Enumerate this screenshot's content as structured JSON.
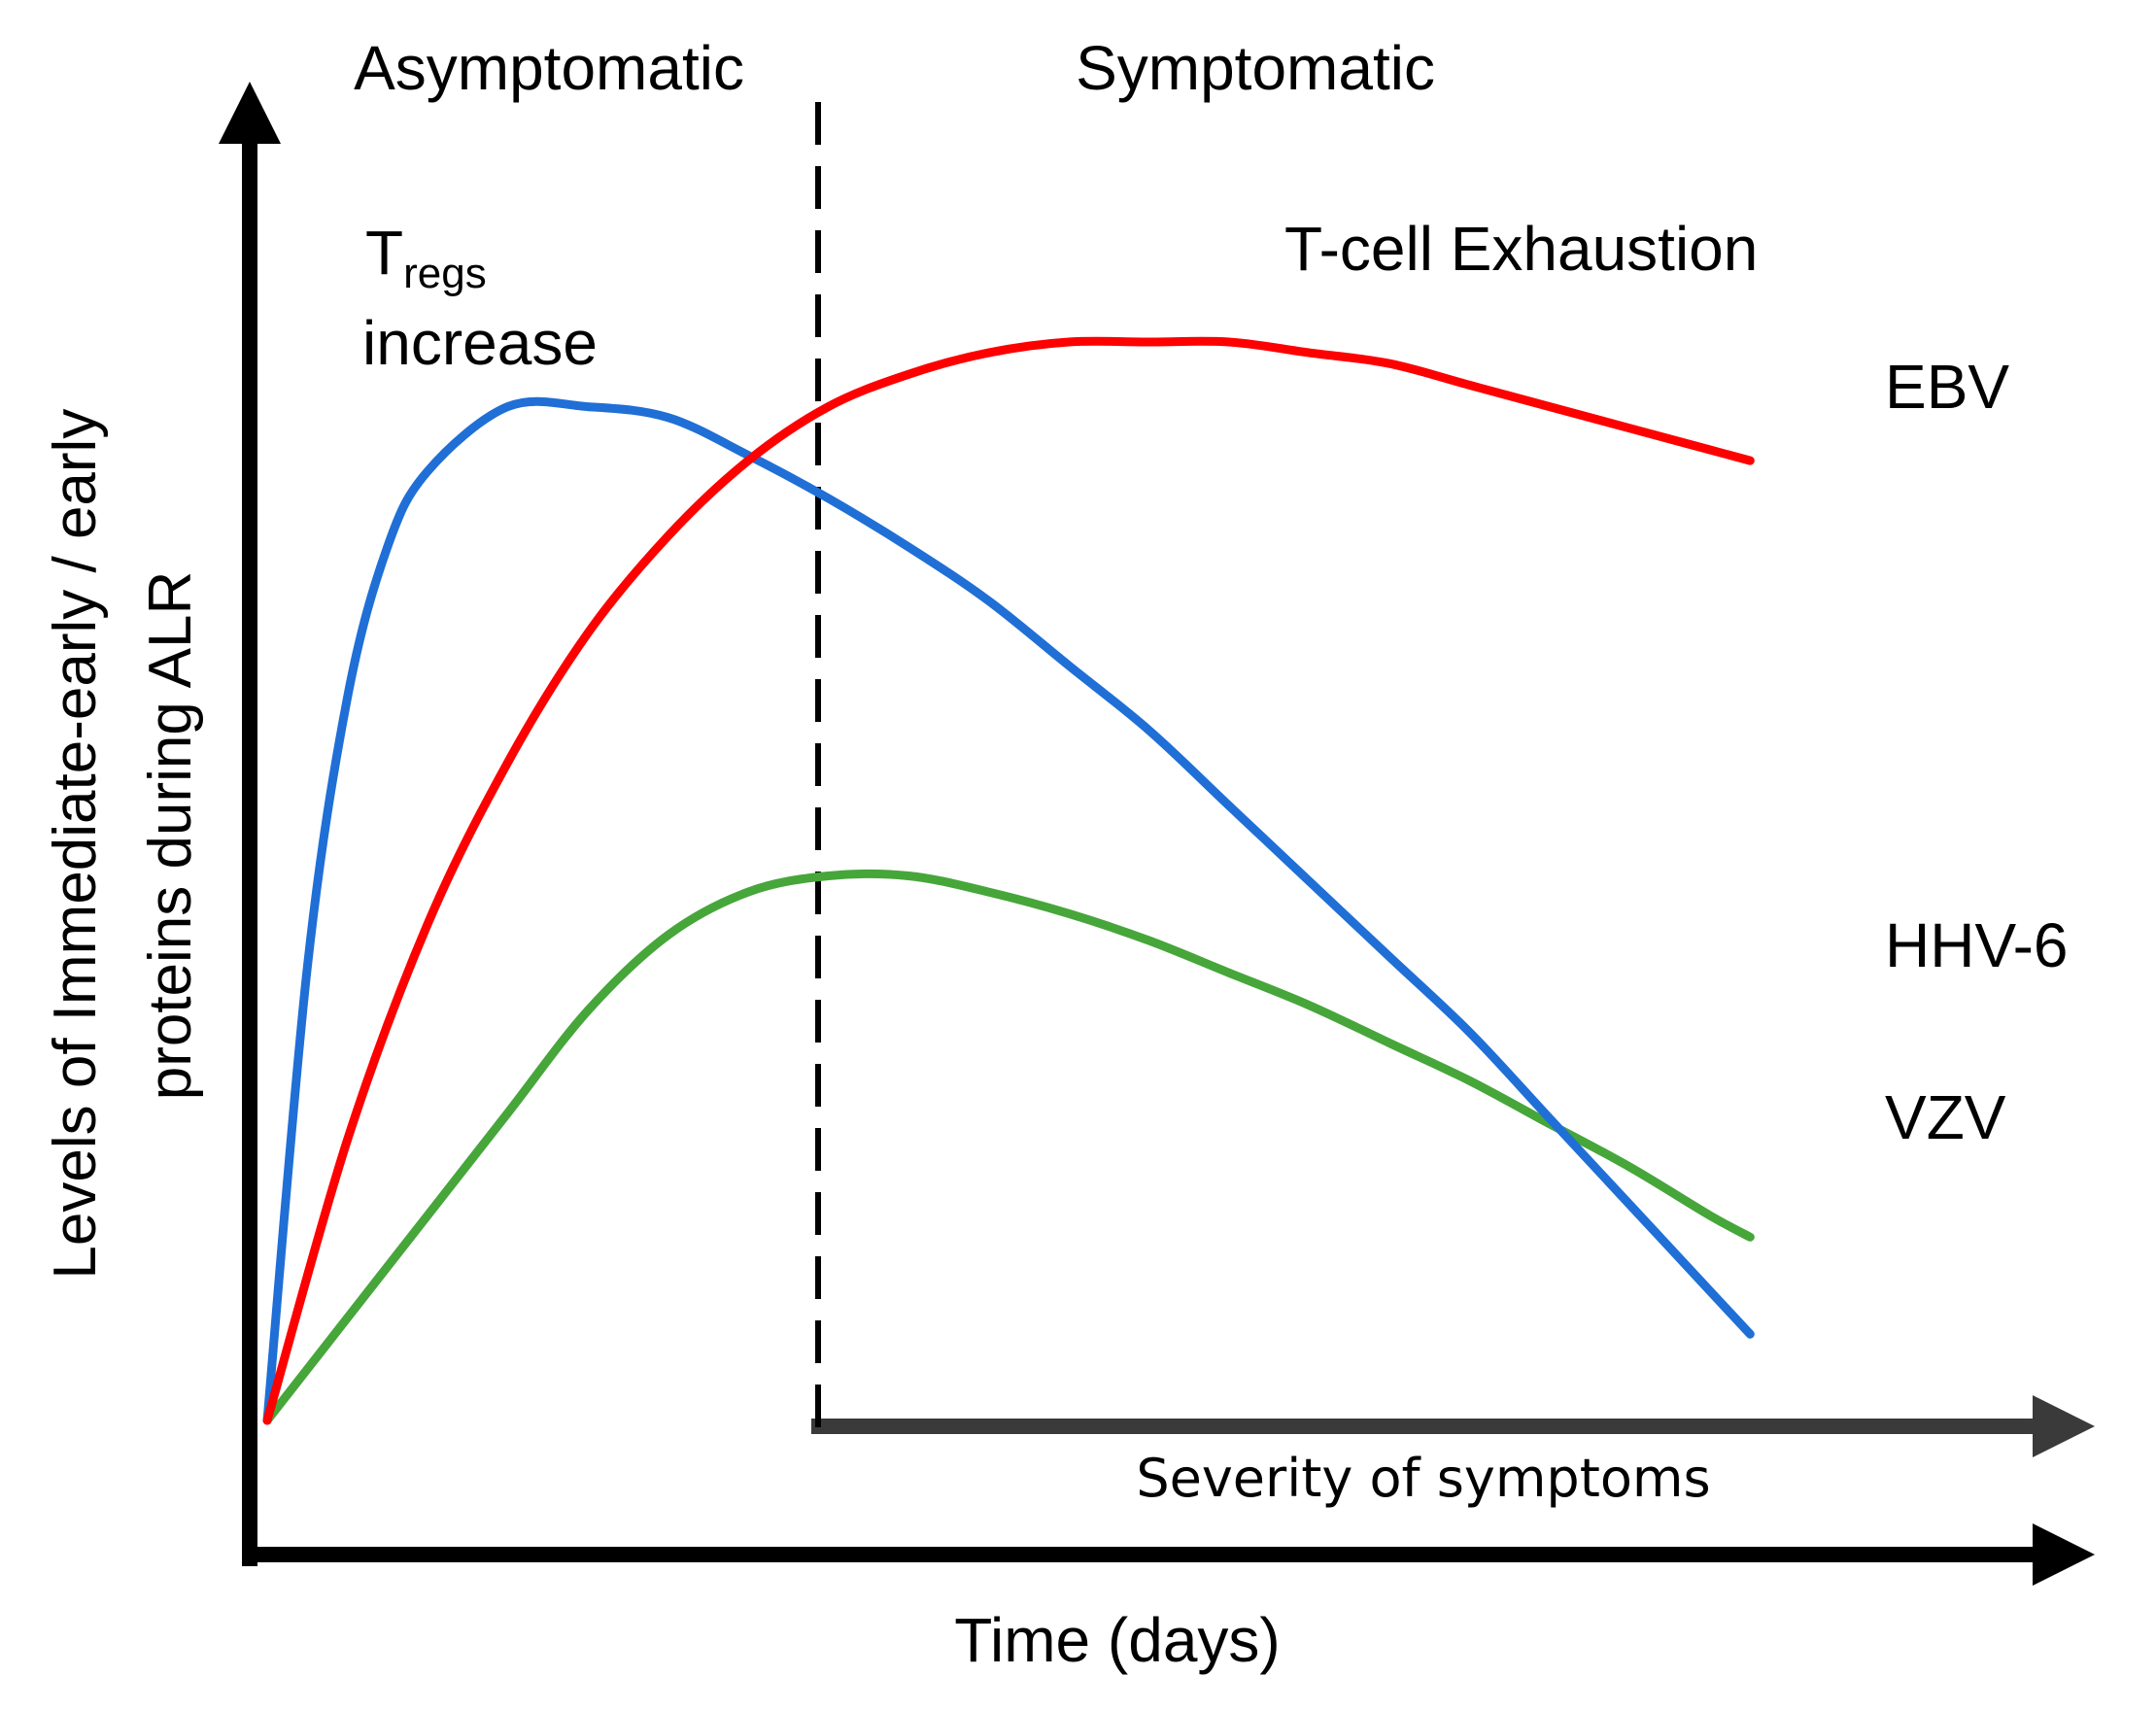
{
  "chart_data": {
    "type": "line",
    "title": "",
    "xlabel": "Time (days)",
    "ylabel_lines": [
      "Levels of Immediate-early / early",
      "proteins during ALR"
    ],
    "xlim": [
      0,
      10
    ],
    "ylim": [
      0,
      10
    ],
    "grid": false,
    "legend": "inline labels at right end of each line",
    "phases": {
      "left_label": "Asymptomatic",
      "right_label": "Symptomatic",
      "boundary_x": 3.0
    },
    "annotations": {
      "tregs_main": "T",
      "tregs_sub": "regs",
      "tregs_line2": "increase",
      "exhaustion": "T-cell Exhaustion",
      "severity": "Severity of symptoms"
    },
    "series": [
      {
        "name": "EBV",
        "color": "#ff0000",
        "points": [
          [
            0,
            0
          ],
          [
            0.5,
            2.6
          ],
          [
            1,
            4.6
          ],
          [
            1.5,
            6.1
          ],
          [
            2,
            7.3
          ],
          [
            2.5,
            8.2
          ],
          [
            3,
            8.9
          ],
          [
            3.5,
            9.4
          ],
          [
            4,
            9.7
          ],
          [
            4.5,
            9.9
          ],
          [
            5,
            10.0
          ],
          [
            5.5,
            10.0
          ],
          [
            6,
            10.0
          ],
          [
            6.5,
            9.9
          ],
          [
            7,
            9.8
          ],
          [
            7.5,
            9.6
          ],
          [
            8,
            9.4
          ],
          [
            8.5,
            9.2
          ],
          [
            9,
            9.0
          ],
          [
            9.25,
            8.9
          ]
        ]
      },
      {
        "name": "HHV-6",
        "color": "#1f6fd6",
        "points": [
          [
            0,
            0
          ],
          [
            0.25,
            4.2
          ],
          [
            0.5,
            6.7
          ],
          [
            0.75,
            8.1
          ],
          [
            1,
            8.8
          ],
          [
            1.5,
            9.4
          ],
          [
            2,
            9.4
          ],
          [
            2.5,
            9.3
          ],
          [
            3,
            8.95
          ],
          [
            3.5,
            8.55
          ],
          [
            4,
            8.1
          ],
          [
            4.5,
            7.6
          ],
          [
            5,
            7.0
          ],
          [
            5.5,
            6.4
          ],
          [
            6,
            5.7
          ],
          [
            6.5,
            5.0
          ],
          [
            7,
            4.3
          ],
          [
            7.5,
            3.6
          ],
          [
            8,
            2.8
          ],
          [
            8.5,
            2.0
          ],
          [
            9,
            1.2
          ],
          [
            9.25,
            0.8
          ]
        ]
      },
      {
        "name": "VZV",
        "color": "#46a63a",
        "points": [
          [
            0,
            0
          ],
          [
            0.5,
            0.95
          ],
          [
            1,
            1.9
          ],
          [
            1.5,
            2.85
          ],
          [
            2,
            3.8
          ],
          [
            2.5,
            4.5
          ],
          [
            3,
            4.9
          ],
          [
            3.5,
            5.05
          ],
          [
            4,
            5.05
          ],
          [
            4.5,
            4.9
          ],
          [
            5,
            4.7
          ],
          [
            5.5,
            4.45
          ],
          [
            6,
            4.15
          ],
          [
            6.5,
            3.85
          ],
          [
            7,
            3.5
          ],
          [
            7.5,
            3.15
          ],
          [
            8,
            2.75
          ],
          [
            8.5,
            2.35
          ],
          [
            9,
            1.9
          ],
          [
            9.25,
            1.7
          ]
        ]
      }
    ]
  }
}
